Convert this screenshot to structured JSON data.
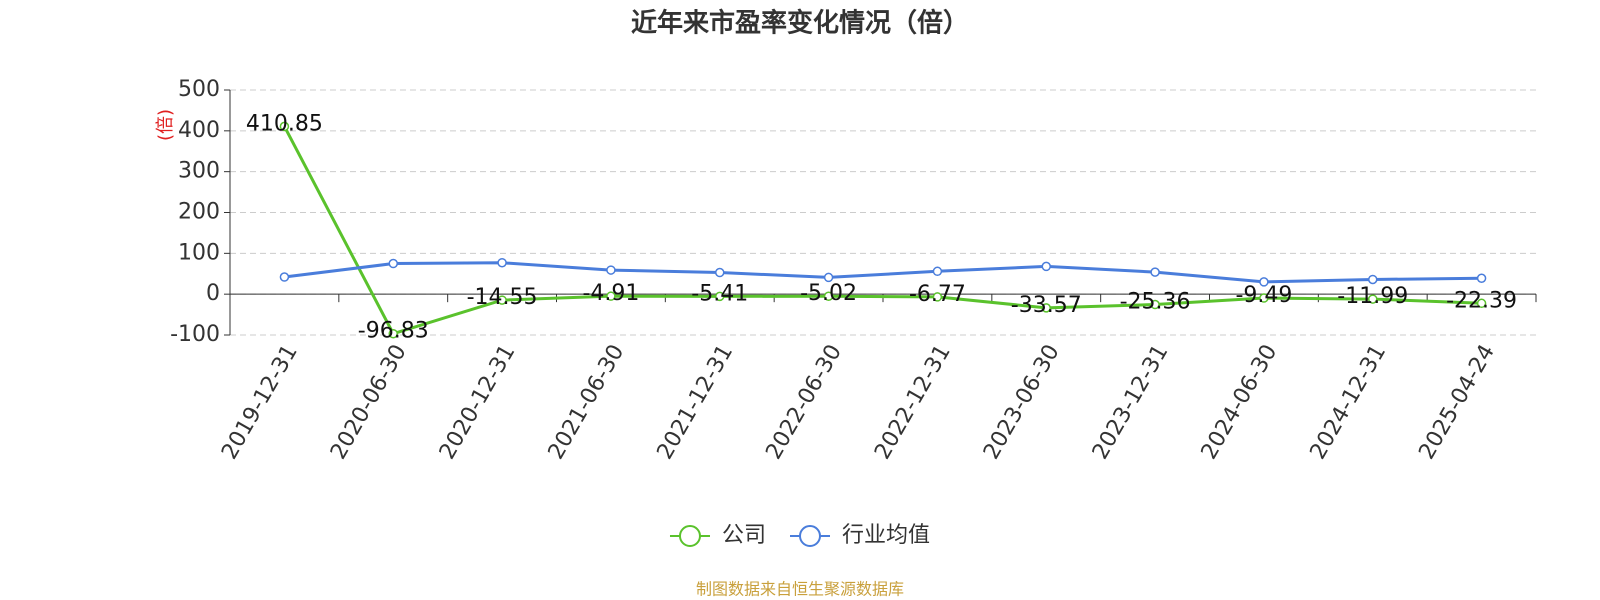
{
  "chart_data": {
    "type": "line",
    "title": "近年来市盈率变化情况（倍）",
    "y_label": "(倍)",
    "categories": [
      "2019-12-31",
      "2020-06-30",
      "2020-12-31",
      "2021-06-30",
      "2021-12-31",
      "2022-06-30",
      "2022-12-31",
      "2023-06-30",
      "2023-12-31",
      "2024-06-30",
      "2024-12-31",
      "2025-04-24"
    ],
    "series": [
      {
        "name": "公司",
        "color": "#5ac22c",
        "values": [
          410.85,
          -96.83,
          -14.55,
          -4.91,
          -5.41,
          -5.02,
          -6.77,
          -33.57,
          -25.36,
          -9.49,
          -11.99,
          -22.39
        ],
        "data_labels": true
      },
      {
        "name": "行业均值",
        "color": "#4a7ddb",
        "values": [
          42,
          75,
          77,
          59,
          53,
          41,
          56,
          68,
          54,
          30,
          36,
          39
        ],
        "data_labels": false
      }
    ],
    "ylim": [
      -100,
      500
    ],
    "yticks": [
      -100,
      0,
      100,
      200,
      300,
      400,
      500
    ],
    "grid": true,
    "legend": "bottom",
    "source": "制图数据来自恒生聚源数据库"
  }
}
